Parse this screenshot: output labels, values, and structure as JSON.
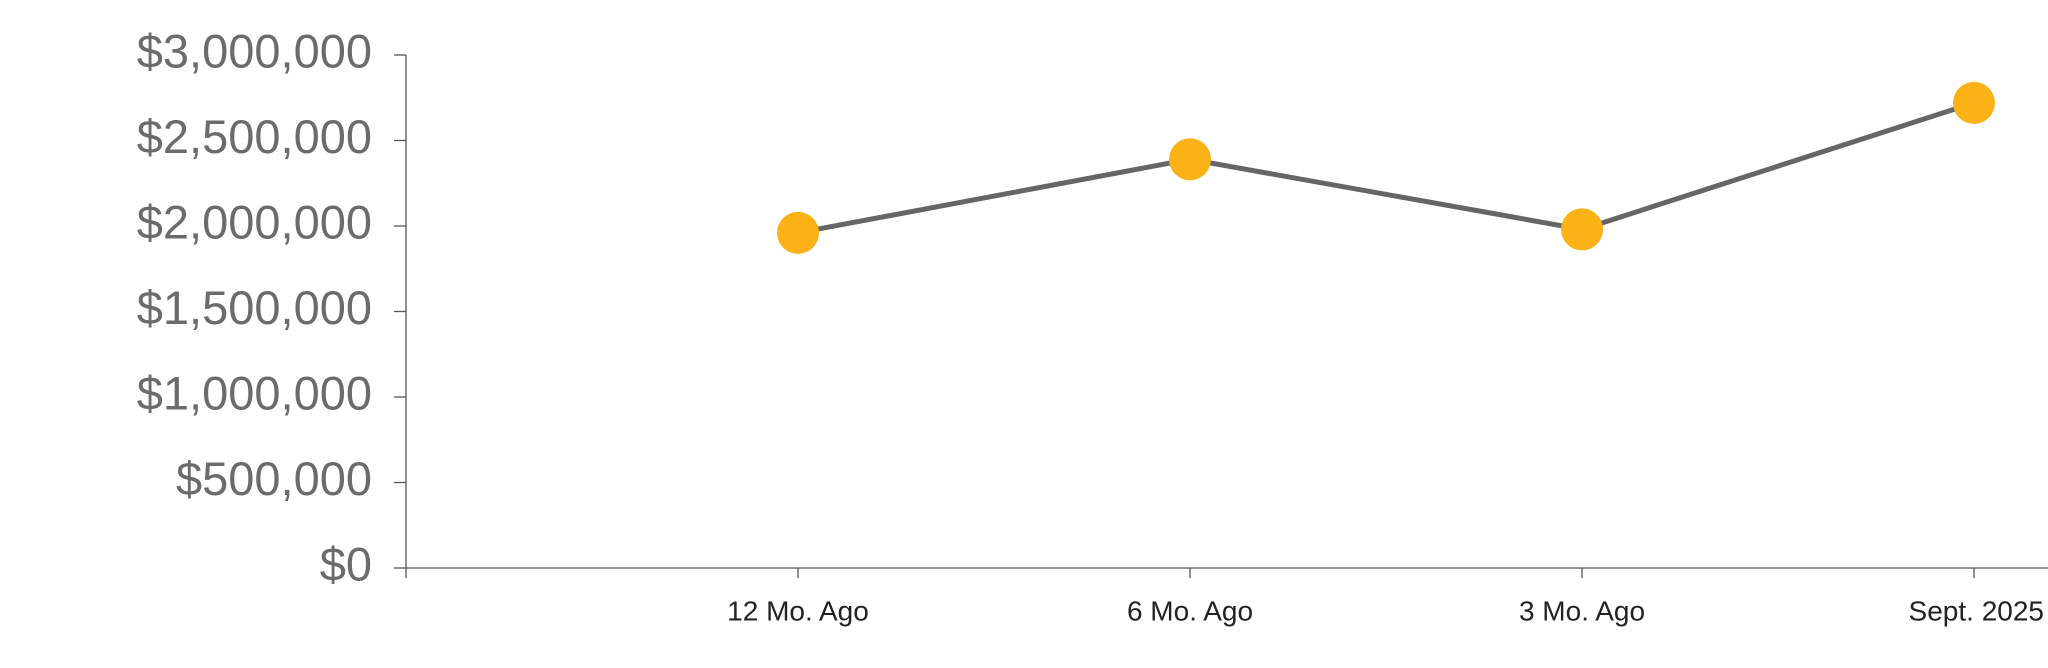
{
  "chart_data": {
    "type": "line",
    "categories": [
      null,
      "12 Mo. Ago",
      "6 Mo. Ago",
      "3 Mo. Ago",
      "Sept. 2025"
    ],
    "series": [
      {
        "color": "#666666",
        "marker_color": "#fbb217",
        "values": [
          null,
          1960000,
          2390000,
          1980000,
          2720000
        ]
      }
    ],
    "ylim": [
      0,
      3000000
    ],
    "yticks": [
      {
        "value": 0,
        "label": "$0"
      },
      {
        "value": 500000,
        "label": "$500,000"
      },
      {
        "value": 1000000,
        "label": "$1,000,000"
      },
      {
        "value": 1500000,
        "label": "$1,500,000"
      },
      {
        "value": 2000000,
        "label": "$2,000,000"
      },
      {
        "value": 2500000,
        "label": "$2,500,000"
      },
      {
        "value": 3000000,
        "label": "$3,000,000"
      }
    ],
    "grid": false
  }
}
